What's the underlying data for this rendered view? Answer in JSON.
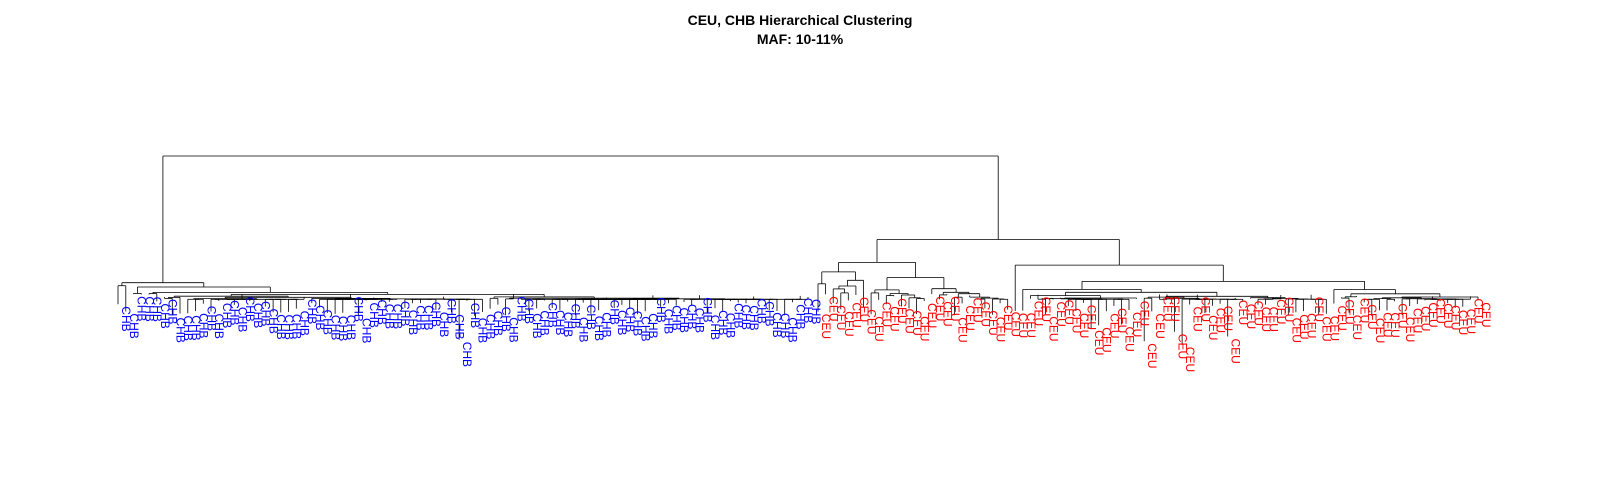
{
  "chart_data": {
    "type": "dendrogram",
    "title": "CEU, CHB Hierarchical Clustering",
    "subtitle": "MAF: 10-11%",
    "colors": {
      "CHB": "#0000ff",
      "CEU": "#ff0000",
      "branch": "#000000"
    },
    "root_height": 1.0,
    "clusters": [
      {
        "label": "CHB",
        "color": "#0000ff",
        "leaf_count": 90,
        "merge_height": 0.12
      },
      {
        "label": "CEU",
        "color": "#ff0000",
        "leaf_count": 88,
        "merge_height": 0.42
      }
    ]
  }
}
